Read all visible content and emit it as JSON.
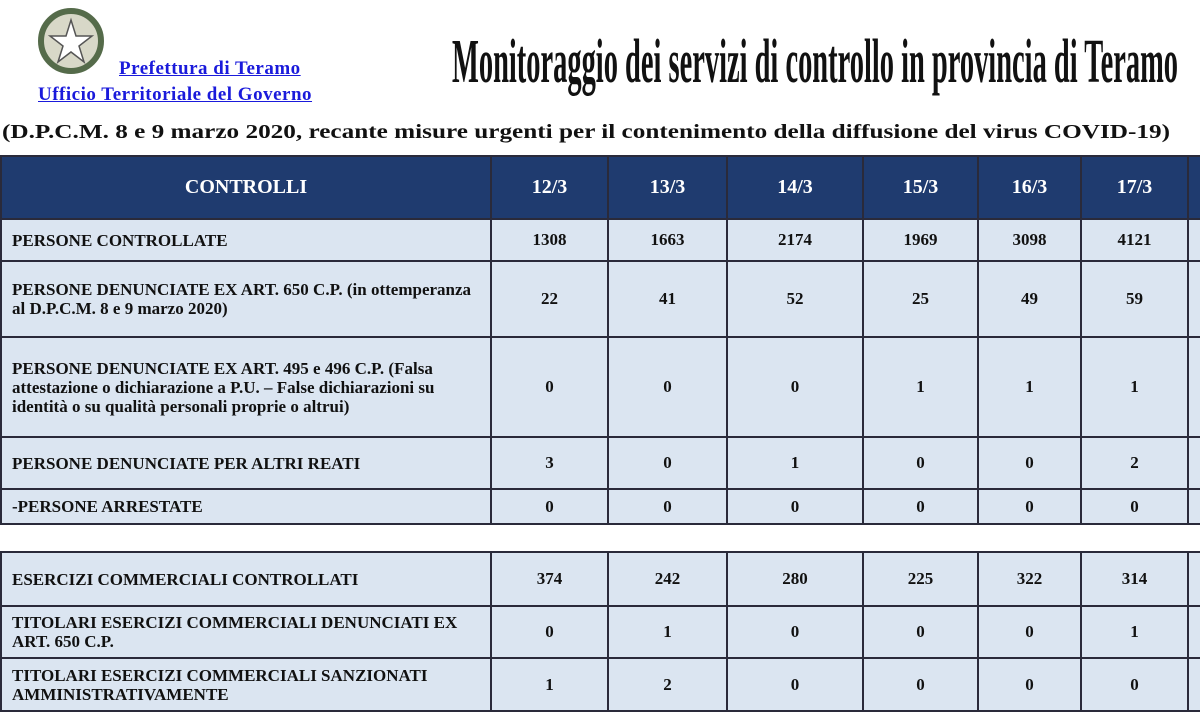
{
  "header": {
    "org": [
      "Prefettura di Teramo",
      "Ufficio Territoriale del Governo"
    ],
    "title": "Monitoraggio dei servizi di controllo in provincia di Teramo",
    "subtitle": "(D.P.C.M. 8 e 9 marzo 2020, recante misure urgenti per il contenimento della diffusione del virus COVID-19)"
  },
  "table": {
    "columns": [
      "CONTROLLI",
      "12/3",
      "13/3",
      "14/3",
      "15/3",
      "16/3",
      "17/3"
    ],
    "rows": [
      {
        "label": "PERSONE CONTROLLATE",
        "values": [
          1308,
          1663,
          2174,
          1969,
          3098,
          4121
        ]
      },
      {
        "label": "PERSONE DENUNCIATE  EX ART. 650 C.P. (in ottemperanza al D.P.C.M.  8 e 9 marzo 2020)",
        "values": [
          22,
          41,
          52,
          25,
          49,
          59
        ]
      },
      {
        "label": "PERSONE DENUNCIATE  EX ART. 495 e 496 C.P. (Falsa attestazione o dichiarazione a P.U. – False dichiarazioni su identità  o su qualità personali proprie o altrui)",
        "values": [
          0,
          0,
          0,
          1,
          1,
          1
        ]
      },
      {
        "label": "PERSONE DENUNCIATE  PER ALTRI REATI",
        "values": [
          3,
          0,
          1,
          0,
          0,
          2
        ]
      },
      {
        "label": "-PERSONE ARRESTATE",
        "values": [
          0,
          0,
          0,
          0,
          0,
          0
        ]
      }
    ],
    "rows2": [
      {
        "label": "ESERCIZI COMMERCIALI CONTROLLATI",
        "values": [
          374,
          242,
          280,
          225,
          322,
          314
        ]
      },
      {
        "label": "TITOLARI ESERCIZI COMMERCIALI DENUNCIATI  EX ART. 650 C.P.",
        "values": [
          0,
          1,
          0,
          0,
          0,
          1
        ]
      },
      {
        "label": "TITOLARI ESERCIZI COMMERCIALI SANZIONATI  AMMINISTRATIVAMENTE",
        "values": [
          1,
          2,
          0,
          0,
          0,
          0
        ]
      }
    ]
  }
}
